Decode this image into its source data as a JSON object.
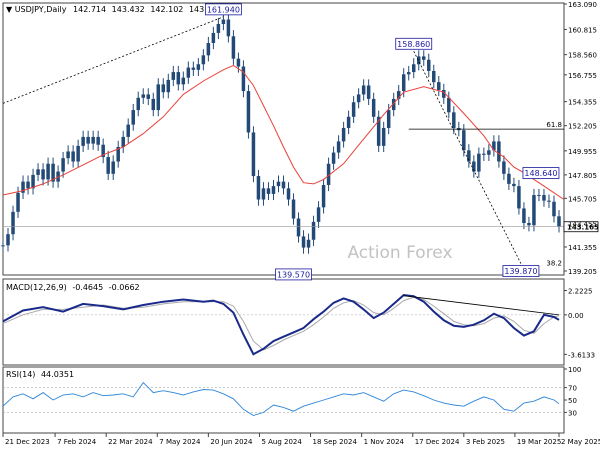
{
  "chart_data": [
    {
      "type": "line",
      "panel": "price",
      "header": {
        "symbol": "USDJPY,Daily",
        "ohlc": [
          "142.714",
          "143.432",
          "142.102",
          "143.165"
        ]
      },
      "watermark": "Action Forex",
      "ylim": [
        139.205,
        163.09
      ],
      "yticks": [
        "163.090",
        "160.815",
        "158.560",
        "156.755",
        "154.355",
        "152.205",
        "149.955",
        "147.805",
        "145.705",
        "143.455",
        "141.355",
        "139.205"
      ],
      "last_price": "143.165",
      "series": [
        {
          "name": "",
          "style": "candles",
          "color": "#234a77",
          "x": [
            0,
            5,
            10,
            15,
            20,
            25,
            30,
            35,
            40,
            45,
            50,
            55,
            60,
            65,
            70,
            75,
            80,
            85,
            90,
            95,
            100,
            105,
            110,
            115,
            120,
            125,
            130,
            135,
            140,
            145,
            150,
            155,
            160,
            165,
            170,
            175,
            180,
            185,
            190,
            195,
            200,
            205,
            210,
            215,
            220,
            225,
            230,
            235,
            240,
            245,
            250,
            255,
            260,
            265,
            270,
            275,
            280,
            285,
            290,
            295,
            300,
            305,
            310,
            315,
            320,
            325,
            330,
            335,
            340,
            345,
            350,
            355,
            360,
            365,
            370,
            375,
            380,
            385,
            390,
            395,
            400,
            405,
            410,
            415,
            420,
            425,
            430,
            435,
            440,
            445,
            450,
            455,
            460,
            465,
            470,
            475,
            480,
            485,
            490,
            495,
            500,
            505,
            510,
            515,
            520,
            525,
            530,
            535,
            540,
            545,
            550,
            555
          ],
          "y": [
            141.5,
            142.5,
            144.5,
            146.2,
            147.2,
            146.6,
            147.8,
            148.3,
            147.4,
            148.8,
            147.2,
            148.1,
            149.3,
            149.9,
            149.0,
            150.4,
            151.2,
            150.6,
            151.2,
            150.5,
            149.4,
            147.9,
            149.0,
            150.3,
            151.2,
            152.3,
            153.6,
            154.7,
            155.0,
            154.6,
            153.6,
            155.9,
            155.2,
            156.3,
            157.0,
            155.9,
            156.5,
            157.4,
            157.2,
            157.7,
            158.5,
            159.6,
            160.5,
            161.3,
            161.7,
            160.2,
            158.2,
            157.5,
            155.3,
            151.6,
            147.7,
            145.6,
            146.6,
            146.1,
            146.8,
            147.2,
            146.6,
            145.6,
            143.9,
            142.3,
            141.3,
            142.0,
            143.6,
            144.9,
            146.9,
            148.8,
            149.8,
            150.8,
            152.0,
            153.0,
            154.3,
            155.0,
            155.8,
            154.6,
            153.0,
            150.4,
            152.0,
            153.6,
            154.6,
            155.3,
            156.8,
            157.0,
            157.7,
            158.4,
            158.1,
            157.1,
            156.1,
            155.4,
            154.7,
            153.4,
            152.0,
            151.8,
            150.0,
            149.0,
            148.1,
            149.7,
            149.6,
            150.0,
            150.8,
            149.0,
            147.9,
            147.0,
            146.8,
            144.8,
            143.5,
            143.3,
            146.0,
            146.0,
            145.5,
            145.4,
            144.1,
            143.2
          ],
          "last": 143.165
        },
        {
          "name": "",
          "style": "line",
          "color": "#e8403a",
          "x": [
            0,
            20,
            40,
            60,
            80,
            100,
            120,
            140,
            160,
            180,
            200,
            220,
            230,
            240,
            250,
            260,
            270,
            280,
            290,
            300,
            310,
            320,
            340,
            360,
            380,
            400,
            420,
            440,
            460,
            480,
            490,
            500,
            510,
            520,
            530,
            540,
            550,
            560
          ],
          "y": [
            146.0,
            146.4,
            147.0,
            147.8,
            148.7,
            149.6,
            150.3,
            151.5,
            153.0,
            155.0,
            156.2,
            157.2,
            157.6,
            157.0,
            155.8,
            154.0,
            152.2,
            150.3,
            148.5,
            147.1,
            147.0,
            147.4,
            148.8,
            151.0,
            153.2,
            155.2,
            155.7,
            155.2,
            153.3,
            151.3,
            150.0,
            149.4,
            148.5,
            148.0,
            147.4,
            146.8,
            146.2,
            145.6
          ]
        }
      ],
      "annotations": [
        {
          "text": "161.940",
          "x": 220,
          "y": 161.94,
          "boxed": true
        },
        {
          "text": "139.570",
          "x": 290,
          "y": 139.57,
          "boxed": true
        },
        {
          "text": "158.860",
          "x": 410,
          "y": 158.86,
          "boxed": true
        },
        {
          "text": "148.640",
          "x": 537,
          "y": 148.64,
          "boxed": true
        },
        {
          "text": "139.870",
          "x": 517,
          "y": 139.87,
          "boxed": true
        },
        {
          "text": "61.8",
          "x": 560,
          "y": 151.9,
          "boxed": false
        },
        {
          "text": "38.2",
          "x": 560,
          "y": 139.5,
          "boxed": false
        }
      ],
      "trendlines": [
        {
          "x": [
            0,
            220
          ],
          "y": [
            154.2,
            161.94
          ],
          "style": "dotted"
        },
        {
          "x": [
            410,
            517
          ],
          "y": [
            158.86,
            139.87
          ],
          "style": "dotted"
        },
        {
          "x": [
            405,
            560
          ],
          "y": [
            151.9,
            151.9
          ],
          "style": "solid"
        }
      ]
    },
    {
      "type": "line",
      "panel": "macd",
      "header": {
        "label": "MACD(12,26,9)",
        "values": [
          "-0.4645",
          "-0.0662"
        ]
      },
      "ylim": [
        -4.4,
        3.0
      ],
      "yticks": [
        "2.2225",
        "0.00",
        "-3.6133"
      ],
      "series": [
        {
          "name": "",
          "color": "#1a2a8a",
          "x": [
            0,
            20,
            40,
            60,
            80,
            100,
            120,
            140,
            160,
            180,
            200,
            210,
            220,
            230,
            240,
            250,
            260,
            270,
            280,
            290,
            300,
            310,
            320,
            330,
            340,
            350,
            360,
            370,
            380,
            390,
            400,
            410,
            420,
            430,
            440,
            450,
            460,
            470,
            480,
            490,
            500,
            510,
            520,
            530,
            540,
            550,
            555
          ],
          "y": [
            -0.6,
            0.4,
            0.7,
            0.3,
            1.0,
            0.8,
            0.5,
            0.9,
            1.2,
            1.4,
            1.2,
            1.3,
            1.0,
            0.2,
            -1.8,
            -3.6,
            -3.1,
            -2.4,
            -2.0,
            -1.6,
            -1.2,
            -0.4,
            0.3,
            1.1,
            1.5,
            1.2,
            0.5,
            -0.3,
            0.2,
            1.0,
            1.8,
            1.7,
            1.2,
            0.3,
            -0.5,
            -1.0,
            -1.1,
            -0.9,
            -0.5,
            0.1,
            -0.3,
            -1.2,
            -1.9,
            -1.5,
            0.0,
            -0.2,
            -0.46
          ]
        },
        {
          "name": "",
          "color": "#a9a9a9",
          "x": [
            0,
            20,
            40,
            60,
            80,
            100,
            120,
            140,
            160,
            180,
            200,
            210,
            220,
            230,
            240,
            250,
            260,
            270,
            280,
            290,
            300,
            310,
            320,
            330,
            340,
            350,
            360,
            370,
            380,
            390,
            400,
            410,
            420,
            430,
            440,
            450,
            460,
            470,
            480,
            490,
            500,
            510,
            520,
            530,
            540,
            550,
            555
          ],
          "y": [
            -0.8,
            0.0,
            0.5,
            0.5,
            0.7,
            0.9,
            0.6,
            0.7,
            1.0,
            1.2,
            1.2,
            1.2,
            1.2,
            0.8,
            -0.6,
            -2.4,
            -3.2,
            -2.8,
            -2.3,
            -1.9,
            -1.5,
            -0.9,
            -0.2,
            0.6,
            1.1,
            1.3,
            0.9,
            0.2,
            0.0,
            0.6,
            1.3,
            1.6,
            1.4,
            0.8,
            0.1,
            -0.6,
            -0.9,
            -1.0,
            -0.8,
            -0.3,
            -0.1,
            -0.6,
            -1.4,
            -1.7,
            -0.8,
            -0.2,
            -0.07
          ]
        }
      ],
      "trendlines": [
        {
          "x": [
            400,
            555
          ],
          "y": [
            1.75,
            0.0
          ],
          "style": "solid"
        }
      ]
    },
    {
      "type": "line",
      "panel": "rsi",
      "header": {
        "label": "RSI(14)",
        "value": "44.0351"
      },
      "ylim": [
        0,
        100
      ],
      "yticks": [
        "100",
        "70",
        "50",
        "30"
      ],
      "levels": [
        70,
        30
      ],
      "series": [
        {
          "name": "",
          "color": "#2e86d8",
          "x": [
            0,
            10,
            20,
            30,
            40,
            50,
            60,
            70,
            80,
            90,
            100,
            110,
            120,
            130,
            140,
            150,
            160,
            170,
            180,
            190,
            200,
            210,
            220,
            230,
            240,
            250,
            260,
            270,
            280,
            290,
            300,
            310,
            320,
            330,
            340,
            350,
            360,
            370,
            380,
            390,
            400,
            410,
            420,
            430,
            440,
            450,
            460,
            470,
            480,
            490,
            500,
            510,
            520,
            530,
            540,
            550,
            555
          ],
          "y": [
            40,
            55,
            60,
            52,
            62,
            50,
            58,
            60,
            55,
            62,
            57,
            58,
            60,
            55,
            78,
            62,
            65,
            62,
            58,
            63,
            67,
            66,
            60,
            52,
            35,
            25,
            30,
            42,
            38,
            32,
            40,
            45,
            50,
            55,
            60,
            58,
            62,
            55,
            48,
            60,
            66,
            63,
            57,
            50,
            45,
            42,
            40,
            48,
            55,
            50,
            35,
            32,
            45,
            48,
            55,
            50,
            44
          ]
        }
      ]
    }
  ],
  "xaxis": {
    "range": [
      0,
      560
    ],
    "ticks": [
      {
        "x": 0,
        "label": "21 Dec 2023"
      },
      {
        "x": 52,
        "label": "7 Feb 2024"
      },
      {
        "x": 103,
        "label": "22 Mar 2024"
      },
      {
        "x": 154,
        "label": "7 May 2024"
      },
      {
        "x": 205,
        "label": "20 Jun 2024"
      },
      {
        "x": 256,
        "label": "5 Aug 2024"
      },
      {
        "x": 307,
        "label": "18 Sep 2024"
      },
      {
        "x": 358,
        "label": "1 Nov 2024"
      },
      {
        "x": 409,
        "label": "17 Dec 2024"
      },
      {
        "x": 460,
        "label": "3 Feb 2025"
      },
      {
        "x": 511,
        "label": "19 Mar 2025"
      },
      {
        "x": 555,
        "label": "2 May 2025"
      }
    ]
  }
}
